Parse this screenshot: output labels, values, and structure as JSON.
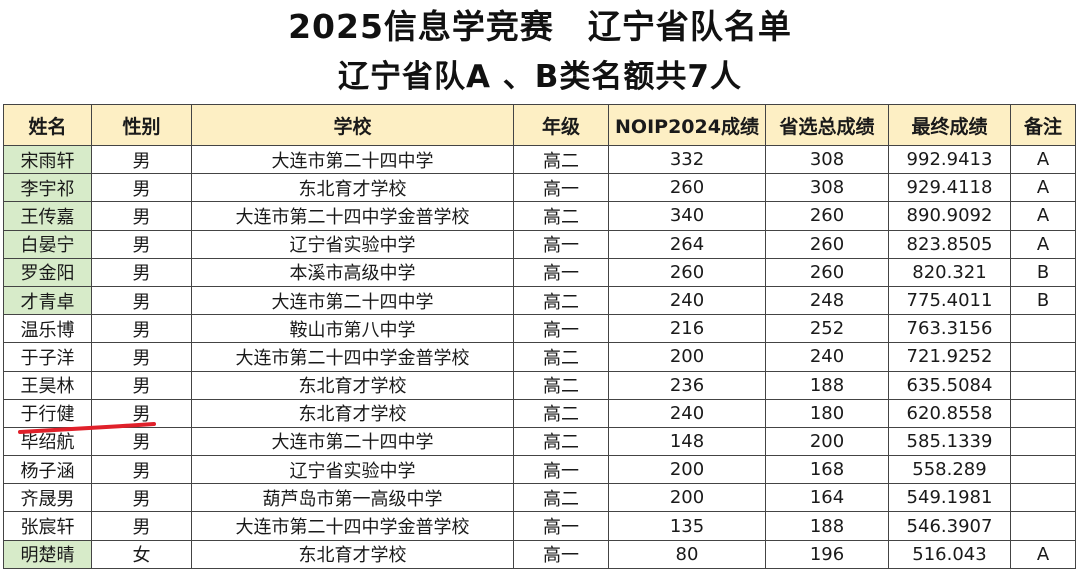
{
  "title_line1": "2025信息学竞赛　辽宁省队名单",
  "title_line2": "辽宁省队A 、B类名额共7人",
  "headers": [
    "姓名",
    "性别",
    "学校",
    "年级",
    "NOIP2024成绩",
    "省选总成绩",
    "最终成绩",
    "备注"
  ],
  "rows": [
    {
      "name": "宋雨轩",
      "gender": "男",
      "school": "大连市第二十四中学",
      "grade": "高二",
      "noip": "332",
      "prov": "308",
      "final": "992.9413",
      "note": "A",
      "highlight": true
    },
    {
      "name": "李宇祁",
      "gender": "男",
      "school": "东北育才学校",
      "grade": "高一",
      "noip": "260",
      "prov": "308",
      "final": "929.4118",
      "note": "A",
      "highlight": true
    },
    {
      "name": "王传嘉",
      "gender": "男",
      "school": "大连市第二十四中学金普学校",
      "grade": "高二",
      "noip": "340",
      "prov": "260",
      "final": "890.9092",
      "note": "A",
      "highlight": true
    },
    {
      "name": "白晏宁",
      "gender": "男",
      "school": "辽宁省实验中学",
      "grade": "高一",
      "noip": "264",
      "prov": "260",
      "final": "823.8505",
      "note": "A",
      "highlight": true
    },
    {
      "name": "罗金阳",
      "gender": "男",
      "school": "本溪市高级中学",
      "grade": "高一",
      "noip": "260",
      "prov": "260",
      "final": "820.321",
      "note": "B",
      "highlight": true
    },
    {
      "name": "才青卓",
      "gender": "男",
      "school": "大连市第二十四中学",
      "grade": "高二",
      "noip": "240",
      "prov": "248",
      "final": "775.4011",
      "note": "B",
      "highlight": true
    },
    {
      "name": "温乐博",
      "gender": "男",
      "school": "鞍山市第八中学",
      "grade": "高一",
      "noip": "216",
      "prov": "252",
      "final": "763.3156",
      "note": "",
      "highlight": false
    },
    {
      "name": "于子洋",
      "gender": "男",
      "school": "大连市第二十四中学金普学校",
      "grade": "高二",
      "noip": "200",
      "prov": "240",
      "final": "721.9252",
      "note": "",
      "highlight": false
    },
    {
      "name": "王昊林",
      "gender": "男",
      "school": "东北育才学校",
      "grade": "高二",
      "noip": "236",
      "prov": "188",
      "final": "635.5084",
      "note": "",
      "highlight": false
    },
    {
      "name": "于行健",
      "gender": "男",
      "school": "东北育才学校",
      "grade": "高二",
      "noip": "240",
      "prov": "180",
      "final": "620.8558",
      "note": "",
      "highlight": false
    },
    {
      "name": "毕绍航",
      "gender": "男",
      "school": "大连市第二十四中学",
      "grade": "高二",
      "noip": "148",
      "prov": "200",
      "final": "585.1339",
      "note": "",
      "highlight": false
    },
    {
      "name": "杨子涵",
      "gender": "男",
      "school": "辽宁省实验中学",
      "grade": "高一",
      "noip": "200",
      "prov": "168",
      "final": "558.289",
      "note": "",
      "highlight": false
    },
    {
      "name": "齐晟男",
      "gender": "男",
      "school": "葫芦岛市第一高级中学",
      "grade": "高二",
      "noip": "200",
      "prov": "164",
      "final": "549.1981",
      "note": "",
      "highlight": false
    },
    {
      "name": "张宸轩",
      "gender": "男",
      "school": "大连市第二十四中学金普学校",
      "grade": "高一",
      "noip": "135",
      "prov": "188",
      "final": "546.3907",
      "note": "",
      "highlight": false
    },
    {
      "name": "明楚晴",
      "gender": "女",
      "school": "东北育才学校",
      "grade": "高一",
      "noip": "80",
      "prov": "196",
      "final": "516.043",
      "note": "A",
      "highlight": true
    }
  ],
  "colors": {
    "header_bg": "#fdefc4",
    "name_highlight": "#d7ebc9",
    "underline": "#e0202a"
  }
}
